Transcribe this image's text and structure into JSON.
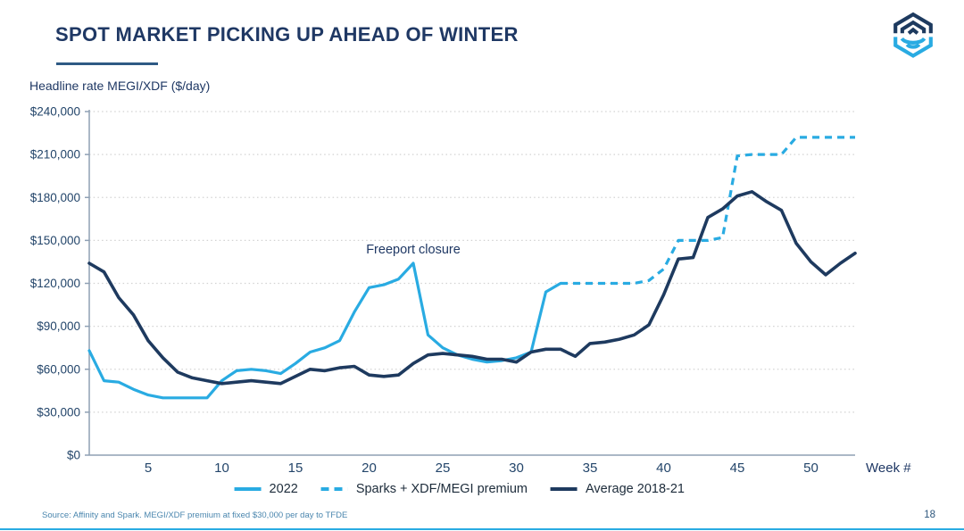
{
  "header": {
    "title": "SPOT MARKET PICKING UP AHEAD OF WINTER",
    "logo": "hexagon-shield-wifi-logo"
  },
  "chart": {
    "axis_title": "Headline rate MEGI/XDF ($/day)"
  },
  "chart_data": {
    "type": "line",
    "title": "SPOT MARKET PICKING UP AHEAD OF WINTER",
    "ylabel": "Headline rate MEGI/XDF ($/day)",
    "xlabel": "Week #",
    "xlim": [
      1,
      53
    ],
    "ylim": [
      0,
      240000
    ],
    "grid": "horizontal-dotted",
    "legend_position": "bottom",
    "annotation": {
      "text": "Freeport closure",
      "week": 23,
      "value": 141000
    },
    "yticks": [
      {
        "value": 0,
        "label": "$0"
      },
      {
        "value": 30000,
        "label": "$30,000"
      },
      {
        "value": 60000,
        "label": "$60,000"
      },
      {
        "value": 90000,
        "label": "$90,000"
      },
      {
        "value": 120000,
        "label": "$120,000"
      },
      {
        "value": 150000,
        "label": "$150,000"
      },
      {
        "value": 180000,
        "label": "$180,000"
      },
      {
        "value": 210000,
        "label": "$210,000"
      },
      {
        "value": 240000,
        "label": "$240,000"
      }
    ],
    "xticks": [
      5,
      10,
      15,
      20,
      25,
      30,
      35,
      40,
      45,
      50
    ],
    "series": [
      {
        "name": "2022",
        "color": "#29abe2",
        "style": "solid",
        "start_week": 1,
        "values": [
          73000,
          52000,
          51000,
          46000,
          42000,
          40000,
          40000,
          40000,
          40000,
          52000,
          59000,
          60000,
          59000,
          57000,
          64000,
          72000,
          75000,
          80000,
          100000,
          117000,
          119000,
          123000,
          134000,
          84000,
          75000,
          70000,
          67000,
          65000,
          66000,
          68000,
          72000,
          114000,
          120000
        ]
      },
      {
        "name": "Sparks + XDF/MEGI premium",
        "color": "#29abe2",
        "style": "dashed",
        "start_week": 33,
        "values": [
          120000,
          120000,
          120000,
          120000,
          120000,
          120000,
          122000,
          130000,
          150000,
          150000,
          150000,
          152000,
          209000,
          210000,
          210000,
          210000,
          222000,
          222000,
          222000,
          222000,
          222000
        ]
      },
      {
        "name": "Average 2018-21",
        "color": "#1e3a5f",
        "style": "solid",
        "start_week": 1,
        "values": [
          134000,
          128000,
          110000,
          98000,
          80000,
          68000,
          58000,
          54000,
          52000,
          50000,
          51000,
          52000,
          51000,
          50000,
          55000,
          60000,
          59000,
          61000,
          62000,
          56000,
          55000,
          56000,
          64000,
          70000,
          71000,
          70000,
          69000,
          67000,
          67000,
          65000,
          72000,
          74000,
          74000,
          69000,
          78000,
          79000,
          81000,
          84000,
          91000,
          112000,
          137000,
          138000,
          166000,
          172000,
          181000,
          184000,
          177000,
          171000,
          148000,
          135000,
          126000,
          134000,
          141000
        ]
      }
    ]
  },
  "footer": {
    "source": "Source: Affinity and Spark. MEGI/XDF premium at fixed $30,000 per day to TFDE",
    "page_number": "18"
  },
  "colors": {
    "accent_blue": "#29abe2",
    "navy": "#1f3864"
  }
}
